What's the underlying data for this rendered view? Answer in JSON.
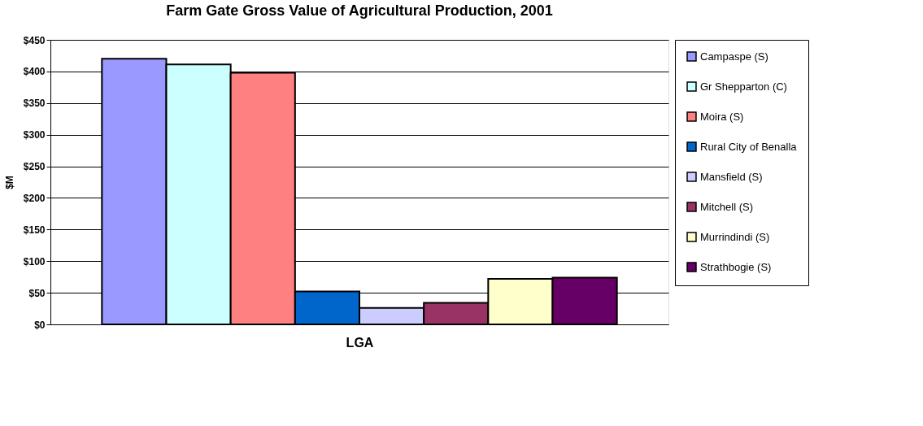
{
  "chart_data": {
    "type": "bar",
    "title": "Farm Gate Gross Value of Agricultural Production, 2001",
    "xlabel": "LGA",
    "ylabel": "$M",
    "categories": [
      null
    ],
    "series": [
      {
        "name": "Campaspe (S)",
        "color": "#9999ff",
        "values": [
          420
        ]
      },
      {
        "name": "Gr Shepparton (C)",
        "color": "#ccffff",
        "values": [
          411
        ]
      },
      {
        "name": "Moira (S)",
        "color": "#ff8080",
        "values": [
          398
        ]
      },
      {
        "name": "Rural City of Benalla",
        "color": "#0066cc",
        "values": [
          52
        ]
      },
      {
        "name": "Mansfield (S)",
        "color": "#ccccff",
        "values": [
          26
        ]
      },
      {
        "name": "Mitchell (S)",
        "color": "#993366",
        "values": [
          34
        ]
      },
      {
        "name": "Murrindindi (S)",
        "color": "#ffffcc",
        "values": [
          72
        ]
      },
      {
        "name": "Strathbogie (S)",
        "color": "#660066",
        "values": [
          74
        ]
      }
    ],
    "ylim": [
      0,
      450
    ],
    "yticks": [
      {
        "value": 0,
        "label": "$0"
      },
      {
        "value": 50,
        "label": "$50"
      },
      {
        "value": 100,
        "label": "$100"
      },
      {
        "value": 150,
        "label": "$150"
      },
      {
        "value": 200,
        "label": "$200"
      },
      {
        "value": 250,
        "label": "$250"
      },
      {
        "value": 300,
        "label": "$300"
      },
      {
        "value": 350,
        "label": "$350"
      },
      {
        "value": 400,
        "label": "$400"
      },
      {
        "value": 450,
        "label": "$450"
      }
    ],
    "grid": "y",
    "legend": "right",
    "tick_labels": "y"
  }
}
